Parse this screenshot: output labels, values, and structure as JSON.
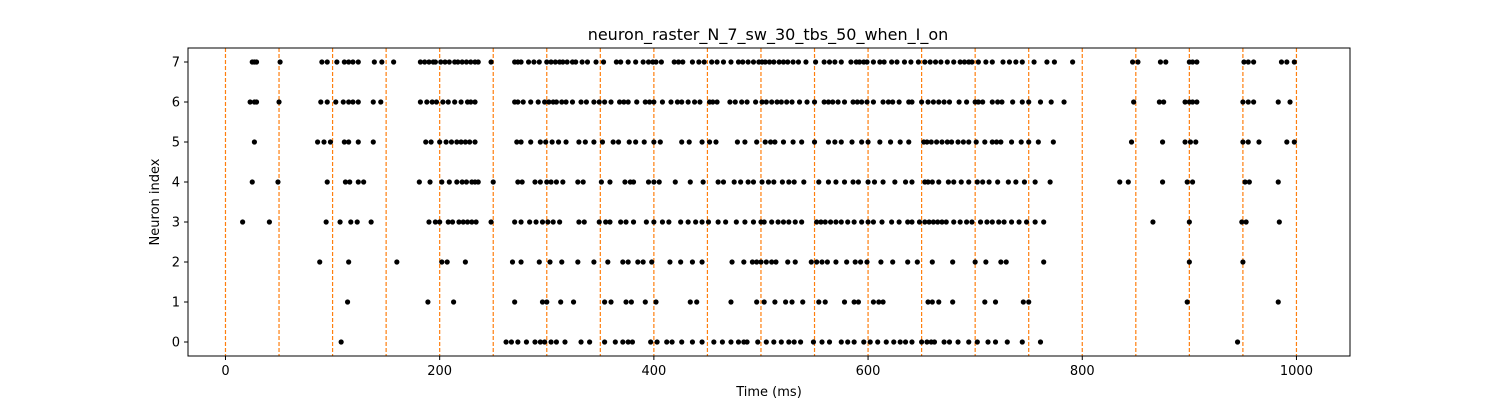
{
  "chart_data": {
    "type": "scatter",
    "title": "neuron_raster_N_7_sw_30_tbs_50_when_I_on",
    "xlabel": "Time (ms)",
    "ylabel": "Neuron index",
    "xlim": [
      -35,
      1050
    ],
    "ylim": [
      -0.35,
      7.35
    ],
    "xticks": [
      0,
      200,
      400,
      600,
      800,
      1000
    ],
    "yticks": [
      0,
      1,
      2,
      3,
      4,
      5,
      6,
      7
    ],
    "grid": false,
    "colors": {
      "spike": "#000000",
      "marker_line": "#ff7f0e"
    },
    "vertical_markers": {
      "x": [
        0,
        50,
        100,
        150,
        200,
        250,
        300,
        350,
        400,
        450,
        500,
        550,
        600,
        650,
        700,
        750,
        800,
        850,
        900,
        950,
        1000
      ],
      "style": "dashed"
    },
    "spikes": [
      {
        "neuron": 7,
        "times": [
          25,
          27,
          29,
          51,
          90,
          95,
          104,
          111,
          115,
          119,
          124,
          139,
          146,
          157,
          182,
          186,
          190,
          194,
          196,
          201,
          205,
          209,
          214,
          217,
          221,
          225,
          229,
          233,
          236,
          248,
          270,
          273,
          276,
          283,
          288,
          293,
          300,
          304,
          308,
          312,
          315,
          319,
          324,
          327,
          333,
          338,
          346,
          353,
          365,
          369,
          376,
          383,
          390,
          395,
          399,
          402,
          407,
          419,
          423,
          427,
          436,
          442,
          447,
          454,
          459,
          465,
          472,
          479,
          483,
          488,
          493,
          498,
          501,
          504,
          508,
          512,
          517,
          521,
          525,
          530,
          535,
          542,
          551,
          559,
          564,
          569,
          575,
          584,
          589,
          592,
          596,
          599,
          605,
          611,
          615,
          622,
          627,
          634,
          640,
          647,
          653,
          658,
          663,
          668,
          674,
          680,
          686,
          690,
          694,
          697,
          703,
          710,
          716,
          726,
          732,
          738,
          744,
          755,
          767,
          774,
          791,
          847,
          852,
          873,
          878,
          900,
          903,
          907,
          951,
          955,
          960,
          986,
          991,
          998
        ]
      },
      {
        "neuron": 6,
        "times": [
          23,
          27,
          29,
          50,
          89,
          95,
          103,
          110,
          115,
          119,
          124,
          138,
          145,
          182,
          188,
          193,
          197,
          203,
          208,
          214,
          220,
          226,
          229,
          233,
          270,
          273,
          278,
          285,
          292,
          298,
          302,
          306,
          309,
          314,
          318,
          324,
          332,
          337,
          344,
          349,
          354,
          360,
          368,
          372,
          376,
          384,
          392,
          396,
          400,
          408,
          416,
          422,
          426,
          432,
          438,
          443,
          452,
          455,
          459,
          471,
          476,
          482,
          487,
          495,
          501,
          505,
          510,
          515,
          519,
          524,
          529,
          536,
          543,
          550,
          559,
          563,
          567,
          572,
          578,
          586,
          590,
          594,
          599,
          605,
          614,
          619,
          623,
          629,
          638,
          641,
          650,
          656,
          661,
          666,
          671,
          676,
          685,
          692,
          700,
          703,
          707,
          716,
          721,
          725,
          735,
          744,
          750,
          761,
          771,
          783,
          848,
          872,
          876,
          896,
          900,
          903,
          907,
          950,
          955,
          960,
          983,
          994
        ]
      },
      {
        "neuron": 5,
        "times": [
          27,
          86,
          92,
          98,
          111,
          115,
          124,
          138,
          187,
          192,
          200,
          206,
          211,
          216,
          220,
          224,
          228,
          233,
          272,
          276,
          285,
          294,
          299,
          305,
          311,
          318,
          330,
          336,
          344,
          352,
          362,
          367,
          377,
          383,
          391,
          400,
          406,
          426,
          433,
          445,
          452,
          458,
          478,
          485,
          496,
          504,
          509,
          513,
          521,
          530,
          538,
          550,
          563,
          569,
          575,
          585,
          594,
          600,
          611,
          621,
          630,
          638,
          652,
          655,
          659,
          664,
          669,
          674,
          678,
          684,
          689,
          694,
          701,
          709,
          716,
          720,
          724,
          734,
          743,
          750,
          759,
          773,
          846,
          875,
          896,
          901,
          906,
          950,
          955,
          965,
          991,
          998
        ]
      },
      {
        "neuron": 4,
        "times": [
          25,
          49,
          95,
          112,
          116,
          124,
          129,
          181,
          191,
          202,
          209,
          216,
          221,
          225,
          230,
          233,
          236,
          250,
          273,
          277,
          289,
          294,
          300,
          304,
          309,
          315,
          329,
          334,
          351,
          359,
          373,
          378,
          381,
          395,
          400,
          405,
          420,
          434,
          446,
          460,
          465,
          475,
          481,
          488,
          493,
          501,
          507,
          512,
          520,
          526,
          531,
          540,
          554,
          563,
          570,
          578,
          586,
          591,
          600,
          606,
          614,
          625,
          635,
          641,
          653,
          656,
          660,
          666,
          675,
          680,
          687,
          694,
          702,
          707,
          713,
          721,
          731,
          738,
          746,
          756,
          770,
          835,
          843,
          875,
          898,
          903,
          952,
          956,
          983
        ]
      },
      {
        "neuron": 3,
        "times": [
          16,
          41,
          94,
          107,
          117,
          123,
          136,
          190,
          196,
          200,
          208,
          212,
          218,
          222,
          226,
          230,
          234,
          248,
          270,
          276,
          284,
          290,
          296,
          301,
          306,
          312,
          330,
          335,
          349,
          355,
          359,
          369,
          374,
          381,
          393,
          400,
          408,
          414,
          425,
          432,
          439,
          445,
          451,
          460,
          467,
          477,
          485,
          493,
          500,
          503,
          510,
          516,
          521,
          526,
          532,
          538,
          552,
          556,
          560,
          565,
          570,
          575,
          581,
          587,
          594,
          600,
          605,
          613,
          622,
          629,
          637,
          641,
          648,
          653,
          657,
          661,
          665,
          669,
          673,
          680,
          686,
          692,
          697,
          705,
          711,
          716,
          722,
          727,
          734,
          741,
          748,
          756,
          764,
          866,
          900,
          949,
          953,
          984
        ]
      },
      {
        "neuron": 2,
        "times": [
          88,
          115,
          160,
          202,
          207,
          224,
          268,
          276,
          293,
          303,
          314,
          329,
          344,
          357,
          371,
          376,
          385,
          390,
          398,
          415,
          425,
          436,
          445,
          473,
          484,
          492,
          496,
          500,
          505,
          510,
          514,
          525,
          532,
          547,
          552,
          557,
          562,
          570,
          580,
          588,
          593,
          599,
          612,
          623,
          637,
          646,
          660,
          679,
          700,
          710,
          724,
          729,
          764,
          900,
          950
        ]
      },
      {
        "neuron": 1,
        "times": [
          114,
          189,
          213,
          270,
          296,
          300,
          313,
          325,
          354,
          360,
          374,
          379,
          392,
          402,
          434,
          440,
          472,
          496,
          503,
          513,
          523,
          529,
          539,
          554,
          560,
          578,
          587,
          591,
          605,
          610,
          614,
          656,
          660,
          666,
          679,
          709,
          719,
          745,
          750,
          898,
          983
        ]
      },
      {
        "neuron": 0,
        "times": [
          108,
          262,
          267,
          273,
          281,
          289,
          294,
          298,
          304,
          309,
          317,
          332,
          340,
          354,
          364,
          371,
          376,
          380,
          397,
          403,
          412,
          417,
          426,
          436,
          445,
          456,
          464,
          472,
          479,
          484,
          487,
          497,
          505,
          512,
          519,
          526,
          531,
          537,
          549,
          557,
          564,
          575,
          581,
          587,
          596,
          602,
          609,
          617,
          624,
          630,
          635,
          641,
          650,
          655,
          659,
          662,
          671,
          676,
          684,
          694,
          702,
          712,
          719,
          730,
          744,
          761,
          945
        ]
      }
    ]
  }
}
